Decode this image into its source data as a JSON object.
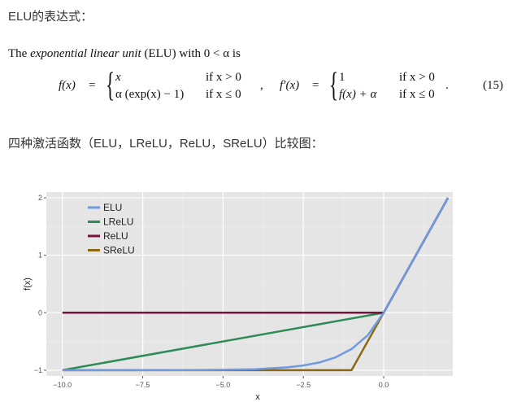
{
  "heading1": "ELU的表达式：",
  "paragraph": {
    "prefix": "The ",
    "italic": "exponential linear unit",
    "suffix": " (ELU) with 0 < α is"
  },
  "formula": {
    "f_lhs": "f(x)",
    "eq": "=",
    "case1_expr": "x",
    "case1_cond": "if x > 0",
    "case2_expr": "α (exp(x) − 1)",
    "case2_cond": "if x ≤ 0",
    "comma": ",",
    "fp_lhs": "f′(x)",
    "fp_case1_expr": "1",
    "fp_case1_cond": "if x > 0",
    "fp_case2_expr": "f(x) + α",
    "fp_case2_cond": "if x ≤ 0",
    "period": ".",
    "number": "(15)"
  },
  "heading2": "四种激活函数（ELU，LReLU，ReLU，SReLU）比较图：",
  "chart_data": {
    "type": "line",
    "xlabel": "x",
    "ylabel": "f(x)",
    "xlim": [
      -10,
      2
    ],
    "ylim": [
      -1,
      2
    ],
    "xticks": [
      -10.0,
      -7.5,
      -5.0,
      -2.5,
      0.0
    ],
    "xtick_labels": [
      "−10.0",
      "−7.5",
      "−5.0",
      "−2.5",
      "0.0"
    ],
    "yticks": [
      -1,
      0,
      1,
      2
    ],
    "ytick_labels": [
      "−1",
      "0",
      "1",
      "2"
    ],
    "grid": true,
    "legend_position": "top-left",
    "series": [
      {
        "name": "ELU",
        "color": "#6f9ae0",
        "x": [
          -10,
          -8,
          -6,
          -5,
          -4,
          -3,
          -2.5,
          -2,
          -1.5,
          -1,
          -0.5,
          0,
          2
        ],
        "y": [
          -1,
          -1,
          -0.998,
          -0.993,
          -0.982,
          -0.95,
          -0.918,
          -0.865,
          -0.777,
          -0.632,
          -0.393,
          0,
          2
        ]
      },
      {
        "name": "LReLU",
        "color": "#2e8b57",
        "x": [
          -10,
          0,
          2
        ],
        "y": [
          -1,
          0,
          2
        ]
      },
      {
        "name": "ReLU",
        "color": "#7b0f3f",
        "x": [
          -10,
          0,
          2
        ],
        "y": [
          0,
          0,
          2
        ]
      },
      {
        "name": "SReLU",
        "color": "#8b6914",
        "x": [
          -10,
          -1,
          0,
          2
        ],
        "y": [
          -1,
          -1,
          0,
          2
        ]
      }
    ]
  }
}
